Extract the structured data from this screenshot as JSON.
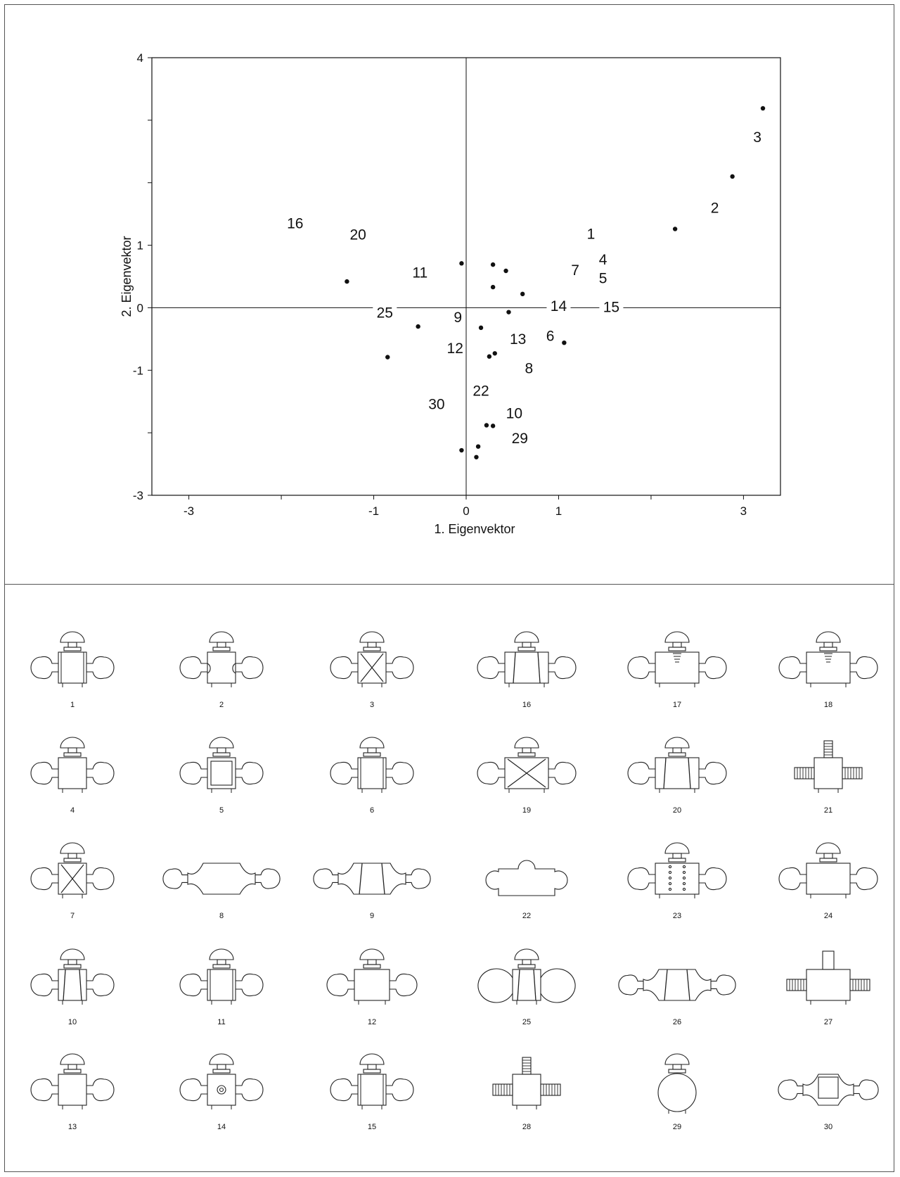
{
  "chart_data": {
    "type": "scatter",
    "xlabel": "1. Eigenvektor",
    "ylabel": "2. Eigenvektor",
    "xlim": [
      -3.4,
      3.4
    ],
    "ylim": [
      -3,
      4
    ],
    "x_ticks": [
      -3,
      -1,
      0,
      1,
      3
    ],
    "y_ticks": [
      4,
      1,
      0,
      -1,
      -3
    ],
    "grid": false,
    "zero_lines": true,
    "points": [
      {
        "x": 3.21,
        "y": 3.19
      },
      {
        "x": 2.88,
        "y": 2.1
      },
      {
        "x": 2.26,
        "y": 1.26
      },
      {
        "x": -1.29,
        "y": 0.42
      },
      {
        "x": -0.05,
        "y": 0.71
      },
      {
        "x": 0.29,
        "y": 0.69
      },
      {
        "x": 0.43,
        "y": 0.59
      },
      {
        "x": 0.29,
        "y": 0.33
      },
      {
        "x": 0.61,
        "y": 0.22
      },
      {
        "x": 0.46,
        "y": -0.07
      },
      {
        "x": -0.52,
        "y": -0.3
      },
      {
        "x": 0.16,
        "y": -0.32
      },
      {
        "x": 1.06,
        "y": -0.56
      },
      {
        "x": -0.85,
        "y": -0.79
      },
      {
        "x": 0.25,
        "y": -0.78
      },
      {
        "x": 0.31,
        "y": -0.73
      },
      {
        "x": 0.22,
        "y": -1.88
      },
      {
        "x": 0.29,
        "y": -1.89
      },
      {
        "x": -0.05,
        "y": -2.28
      },
      {
        "x": 0.13,
        "y": -2.22
      },
      {
        "x": 0.11,
        "y": -2.39
      }
    ],
    "point_labels": [
      {
        "text": "3",
        "x": 3.15,
        "y": 2.73
      },
      {
        "text": "2",
        "x": 2.69,
        "y": 1.6
      },
      {
        "text": "1",
        "x": 1.35,
        "y": 1.18
      },
      {
        "text": "4",
        "x": 1.48,
        "y": 0.77
      },
      {
        "text": "5",
        "x": 1.48,
        "y": 0.47
      },
      {
        "text": "7",
        "x": 1.18,
        "y": 0.6
      },
      {
        "text": "14",
        "x": 1.0,
        "y": 0.03
      },
      {
        "text": "15",
        "x": 1.57,
        "y": 0.01
      },
      {
        "text": "6",
        "x": 0.91,
        "y": -0.45
      },
      {
        "text": "13",
        "x": 0.56,
        "y": -0.5
      },
      {
        "text": "8",
        "x": 0.68,
        "y": -0.97
      },
      {
        "text": "9",
        "x": -0.09,
        "y": -0.15
      },
      {
        "text": "12",
        "x": -0.12,
        "y": -0.65
      },
      {
        "text": "22",
        "x": 0.16,
        "y": -1.33
      },
      {
        "text": "10",
        "x": 0.52,
        "y": -1.69
      },
      {
        "text": "29",
        "x": 0.58,
        "y": -2.09
      },
      {
        "text": "30",
        "x": -0.32,
        "y": -1.54
      },
      {
        "text": "25",
        "x": -0.88,
        "y": -0.08
      },
      {
        "text": "11",
        "x": -0.5,
        "y": 0.56
      },
      {
        "text": "20",
        "x": -1.17,
        "y": 1.17
      },
      {
        "text": "16",
        "x": -1.85,
        "y": 1.35
      }
    ]
  },
  "figures": [
    {
      "label": "1",
      "variant": "basic"
    },
    {
      "label": "2",
      "variant": "arcs"
    },
    {
      "label": "3",
      "variant": "cross"
    },
    {
      "label": "16",
      "variant": "wide-taper"
    },
    {
      "label": "17",
      "variant": "ribbed"
    },
    {
      "label": "18",
      "variant": "ribbed-top"
    },
    {
      "label": "4",
      "variant": "plain"
    },
    {
      "label": "5",
      "variant": "square-inner"
    },
    {
      "label": "6",
      "variant": "basic"
    },
    {
      "label": "19",
      "variant": "big-cross"
    },
    {
      "label": "20",
      "variant": "wide-taper"
    },
    {
      "label": "21",
      "variant": "coils"
    },
    {
      "label": "7",
      "variant": "cross"
    },
    {
      "label": "8",
      "variant": "curved"
    },
    {
      "label": "9",
      "variant": "curved-taper"
    },
    {
      "label": "22",
      "variant": "puzzle"
    },
    {
      "label": "23",
      "variant": "dots"
    },
    {
      "label": "24",
      "variant": "concave"
    },
    {
      "label": "10",
      "variant": "taper"
    },
    {
      "label": "11",
      "variant": "basic"
    },
    {
      "label": "12",
      "variant": "small"
    },
    {
      "label": "25",
      "variant": "hooks"
    },
    {
      "label": "26",
      "variant": "curved-taper"
    },
    {
      "label": "27",
      "variant": "block"
    },
    {
      "label": "13",
      "variant": "plain"
    },
    {
      "label": "14",
      "variant": "target"
    },
    {
      "label": "15",
      "variant": "double-edge"
    },
    {
      "label": "28",
      "variant": "coils"
    },
    {
      "label": "29",
      "variant": "circle"
    },
    {
      "label": "30",
      "variant": "curved-small"
    }
  ]
}
